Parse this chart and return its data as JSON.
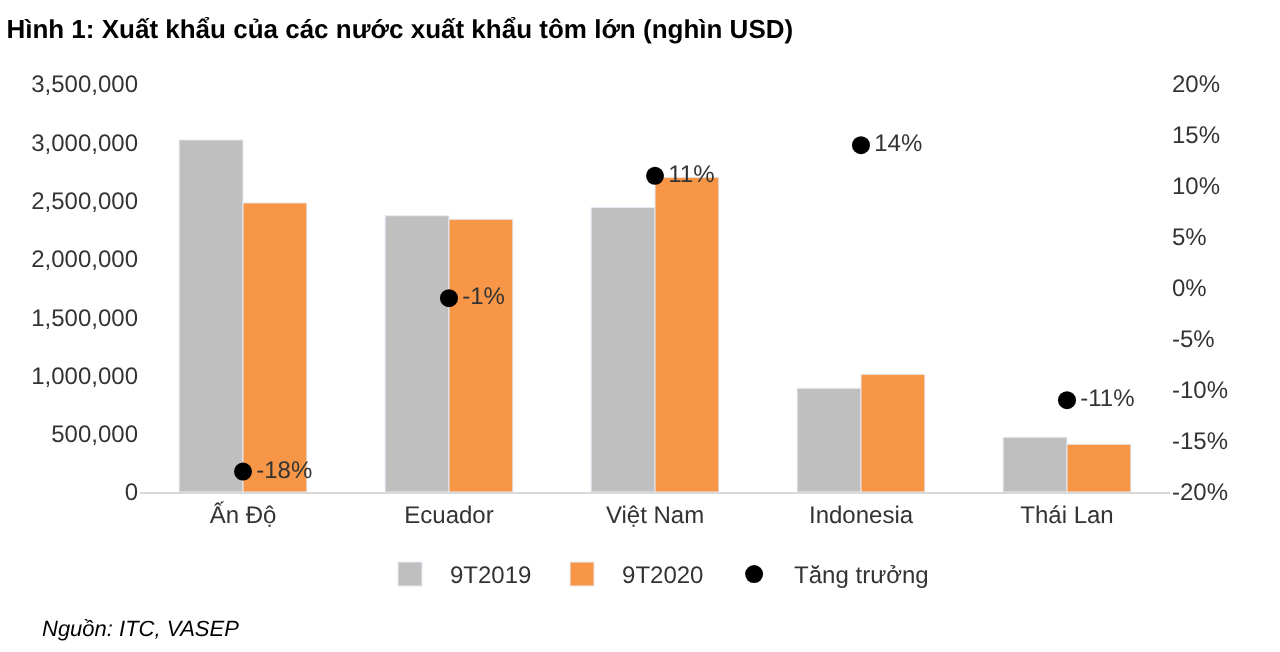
{
  "chart_data": {
    "type": "bar",
    "title": "Hình 1: Xuất khẩu của các nước xuất khẩu tôm lớn (nghìn USD)",
    "categories": [
      "Ấn Độ",
      "Ecuador",
      "Việt Nam",
      "Indonesia",
      "Thái Lan"
    ],
    "series": [
      {
        "name": "9T2019",
        "color": "#bfbfbf",
        "values": [
          3020000,
          2370000,
          2440000,
          890000,
          470000
        ]
      },
      {
        "name": "9T2020",
        "color": "#f79646",
        "values": [
          2480000,
          2340000,
          2700000,
          1010000,
          410000
        ]
      },
      {
        "name": "Tăng trưởng",
        "type": "scatter",
        "axis": "y2",
        "color": "#000000",
        "marker": "circle",
        "values": [
          -18,
          -1,
          11,
          14,
          -11
        ],
        "value_labels": [
          "-18%",
          "-1%",
          "11%",
          "14%",
          "-11%"
        ]
      }
    ],
    "ylim": [
      0,
      3500000
    ],
    "yticks": [
      {
        "value": 0,
        "label": "0"
      },
      {
        "value": 500000,
        "label": "500,000"
      },
      {
        "value": 1000000,
        "label": "1,000,000"
      },
      {
        "value": 1500000,
        "label": "1,500,000"
      },
      {
        "value": 2000000,
        "label": "2,000,000"
      },
      {
        "value": 2500000,
        "label": "2,500,000"
      },
      {
        "value": 3000000,
        "label": "3,000,000"
      },
      {
        "value": 3500000,
        "label": "3,500,000"
      }
    ],
    "y2lim": [
      -20,
      20
    ],
    "y2ticks": [
      {
        "value": -20,
        "label": "-20%"
      },
      {
        "value": -15,
        "label": "-15%"
      },
      {
        "value": -10,
        "label": "-10%"
      },
      {
        "value": -5,
        "label": "-5%"
      },
      {
        "value": 0,
        "label": "0%"
      },
      {
        "value": 5,
        "label": "5%"
      },
      {
        "value": 10,
        "label": "10%"
      },
      {
        "value": 15,
        "label": "15%"
      },
      {
        "value": 20,
        "label": "20%"
      }
    ],
    "legend": "bottom",
    "annotations": [
      "Nguồn: ITC, VASEP"
    ]
  }
}
